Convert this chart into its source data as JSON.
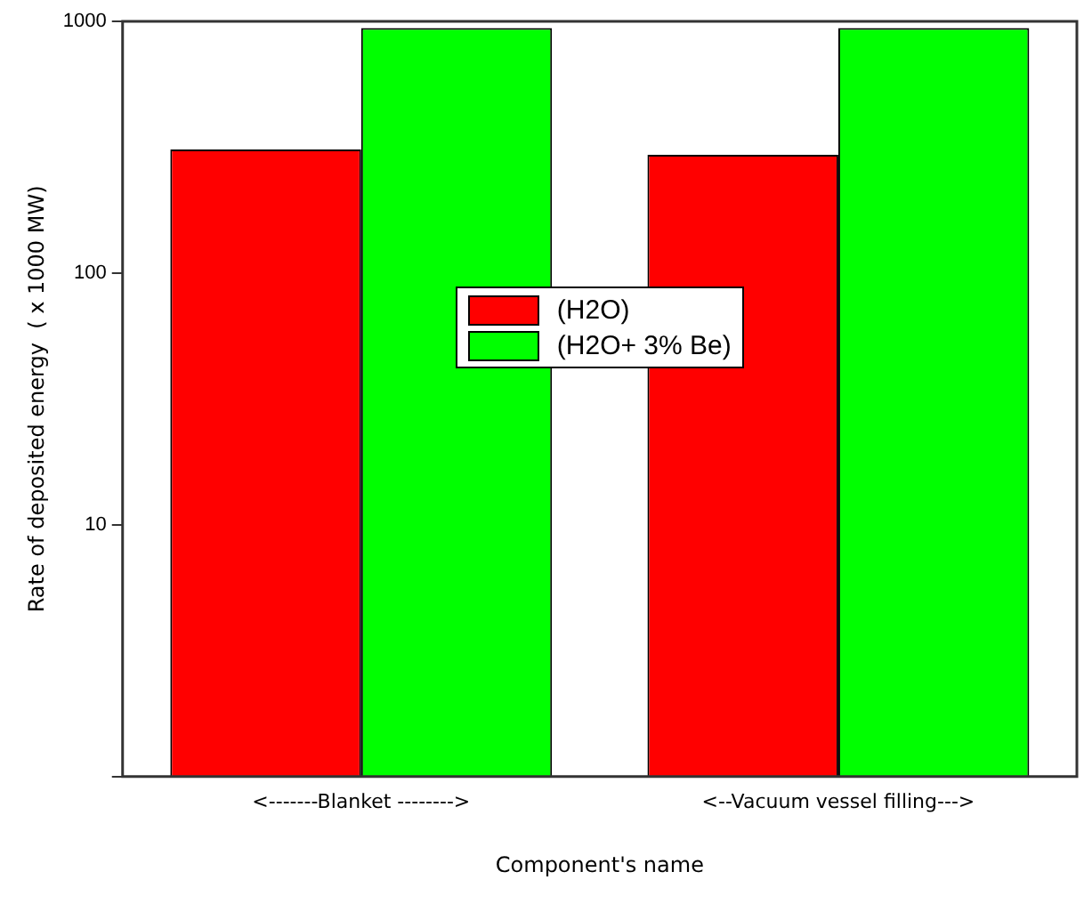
{
  "chart_data": {
    "type": "bar",
    "xlabel": "Component's name",
    "ylabel": "Rate of deposited energy  ( x 1000 MW)",
    "categories": [
      "<-------Blanket -------->",
      "<--Vacuum vessel filling--->"
    ],
    "series": [
      {
        "name": "(H2O)",
        "color": "#ff0000",
        "values": [
          310,
          295
        ]
      },
      {
        "name": "(H2O+ 3% Be)",
        "color": "#00ff00",
        "values": [
          940,
          940
        ]
      }
    ],
    "log": "y",
    "ylim": [
      1,
      1000
    ],
    "yticks": [
      {
        "value": 1,
        "label": null
      },
      10,
      100,
      1000
    ],
    "grid": false,
    "legend": "center"
  }
}
